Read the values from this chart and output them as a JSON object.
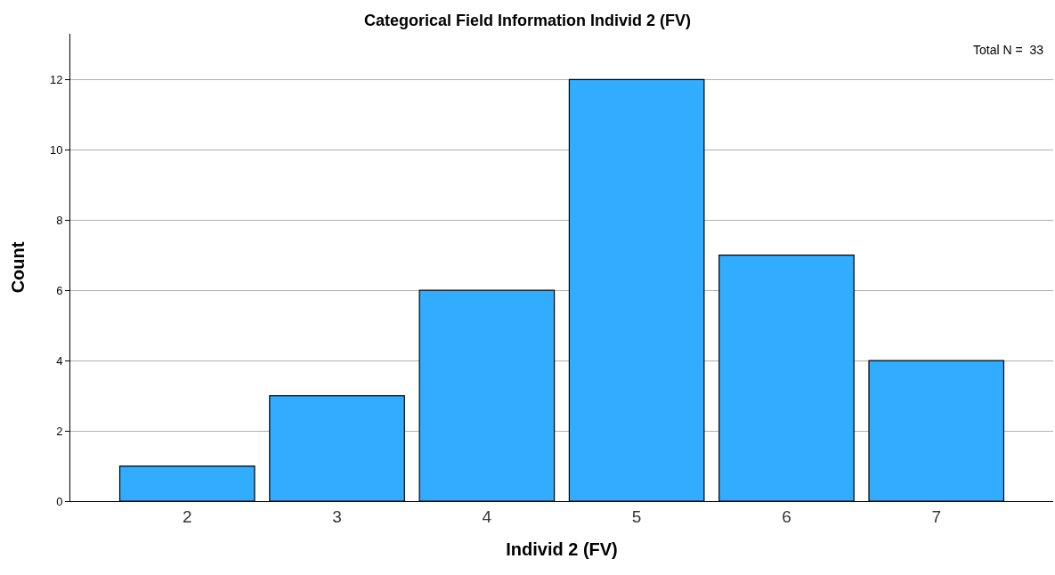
{
  "chart_data": {
    "type": "bar",
    "title": "Categorical Field Information Individ 2 (FV)",
    "xlabel": "Individ 2 (FV)",
    "ylabel": "Count",
    "categories": [
      "2",
      "3",
      "4",
      "5",
      "6",
      "7"
    ],
    "values": [
      1,
      3,
      6,
      12,
      7,
      4
    ],
    "color": "#31acff",
    "ylim": [
      0,
      13.3
    ],
    "yticks": [
      0,
      2,
      4,
      6,
      8,
      10,
      12
    ],
    "grid": "y",
    "annotations": [
      "Total N =  33"
    ]
  }
}
